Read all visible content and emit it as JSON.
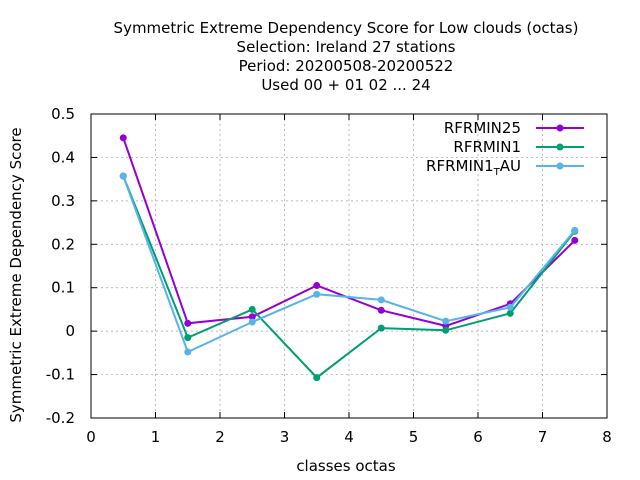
{
  "chart_data": {
    "type": "line",
    "title_lines": [
      "Symmetric Extreme Dependency Score  for Low clouds (octas)",
      "Selection: Ireland     27 stations",
      "Period: 20200508-20200522",
      "Used  00 + 01 02 ... 24"
    ],
    "xlabel": "classes octas",
    "ylabel": "Symmetric Extreme Dependency Score",
    "xlim": [
      0,
      8
    ],
    "ylim": [
      -0.2,
      0.5
    ],
    "xticks": [
      0,
      1,
      2,
      3,
      4,
      5,
      6,
      7,
      8
    ],
    "yticks": [
      -0.2,
      -0.1,
      0,
      0.1,
      0.2,
      0.3,
      0.4,
      0.5
    ],
    "ytick_labels": [
      "-0.2",
      "-0.1",
      "0",
      "0.1",
      "0.2",
      "0.3",
      "0.4",
      "0.5"
    ],
    "grid": true,
    "legend_position": "top-right",
    "x": [
      0.5,
      1.5,
      2.5,
      3.5,
      4.5,
      5.5,
      6.5,
      7.5
    ],
    "series": [
      {
        "name": "RFRMIN25",
        "legend_main": "RFRMIN25",
        "legend_sub": "",
        "legend_tail": "",
        "color": "#9400d3",
        "values": [
          0.445,
          0.018,
          0.033,
          0.105,
          0.048,
          0.012,
          0.063,
          0.209
        ]
      },
      {
        "name": "RFRMIN1",
        "legend_main": "RFRMIN1",
        "legend_sub": "",
        "legend_tail": "",
        "color": "#009e73",
        "values": [
          0.357,
          -0.015,
          0.05,
          -0.107,
          0.007,
          0.002,
          0.041,
          0.23
        ]
      },
      {
        "name": "RFRMIN1_TAU",
        "legend_main": "RFRMIN1",
        "legend_sub": "T",
        "legend_tail": "AU",
        "color": "#56b4e9",
        "values": [
          0.357,
          -0.048,
          0.021,
          0.085,
          0.072,
          0.023,
          0.055,
          0.232
        ]
      }
    ]
  }
}
